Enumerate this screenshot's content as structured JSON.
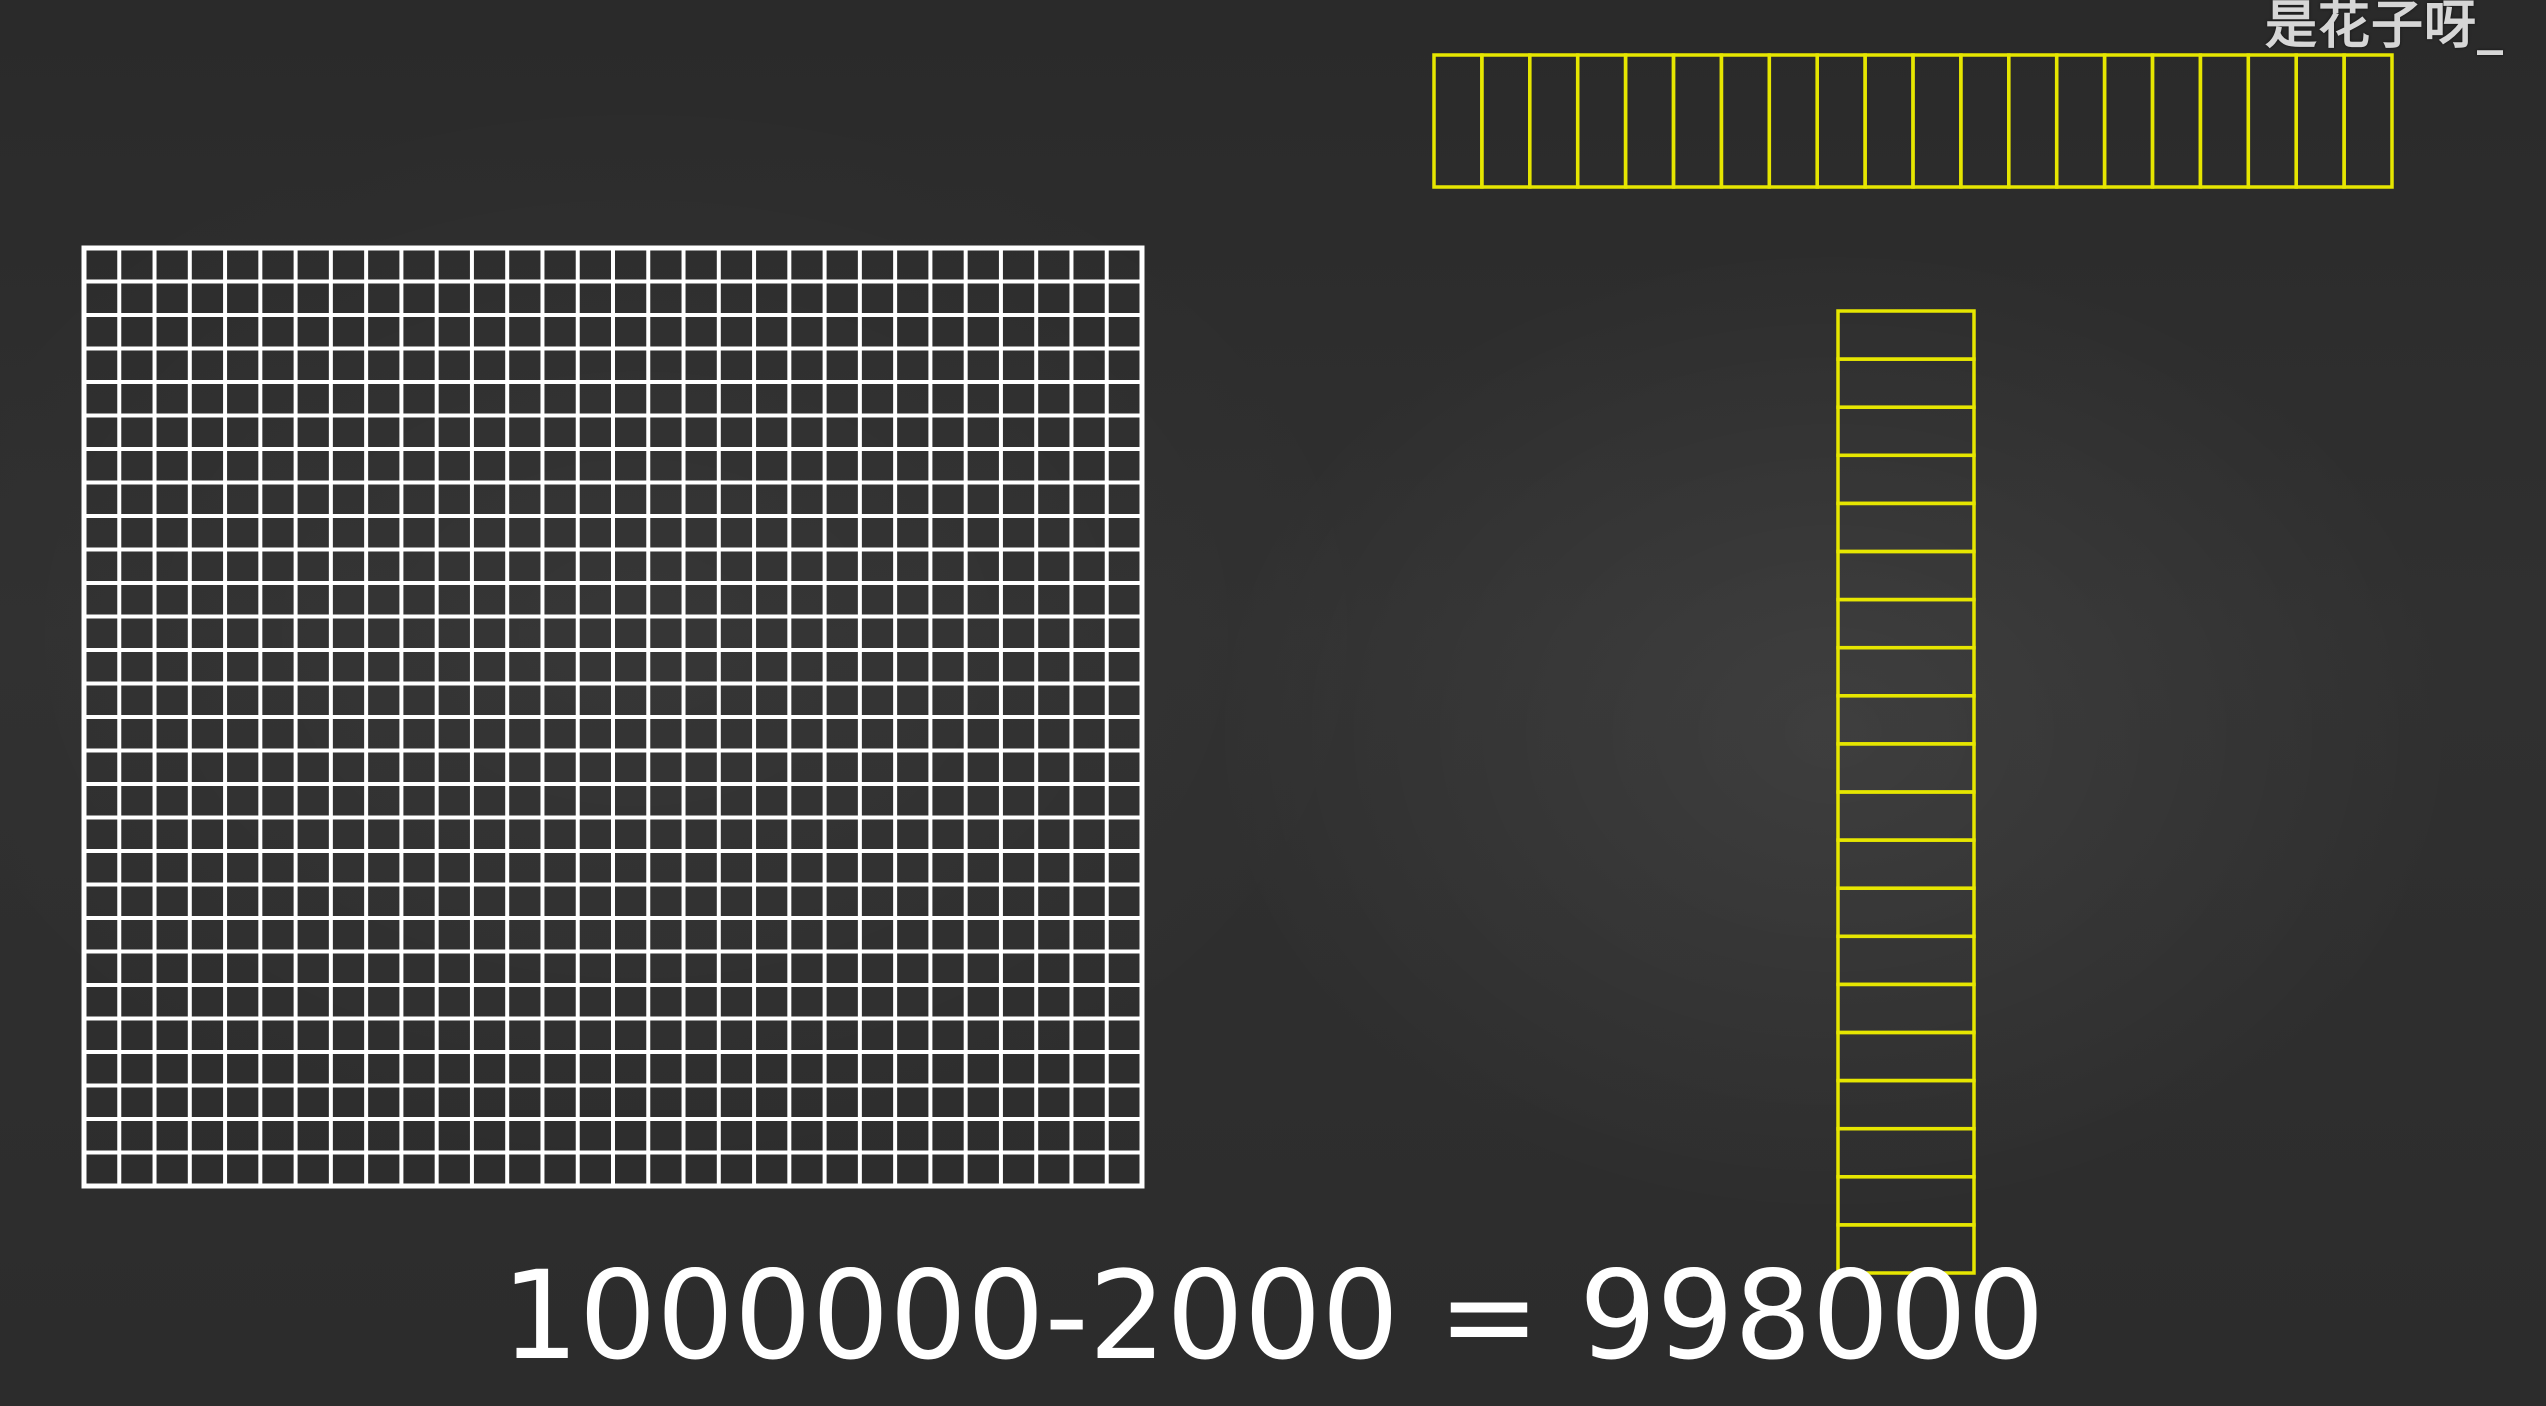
{
  "watermark": "是花子呀_",
  "equation": "1000000-2000 = 998000",
  "colors": {
    "grid": "#ffffff",
    "strip": "#e6e600",
    "background": "#2e2e2e"
  },
  "grid": {
    "rows": 28,
    "cols": 30
  },
  "horizontal_strip": {
    "cells": 20
  },
  "vertical_strip": {
    "cells": 20
  }
}
